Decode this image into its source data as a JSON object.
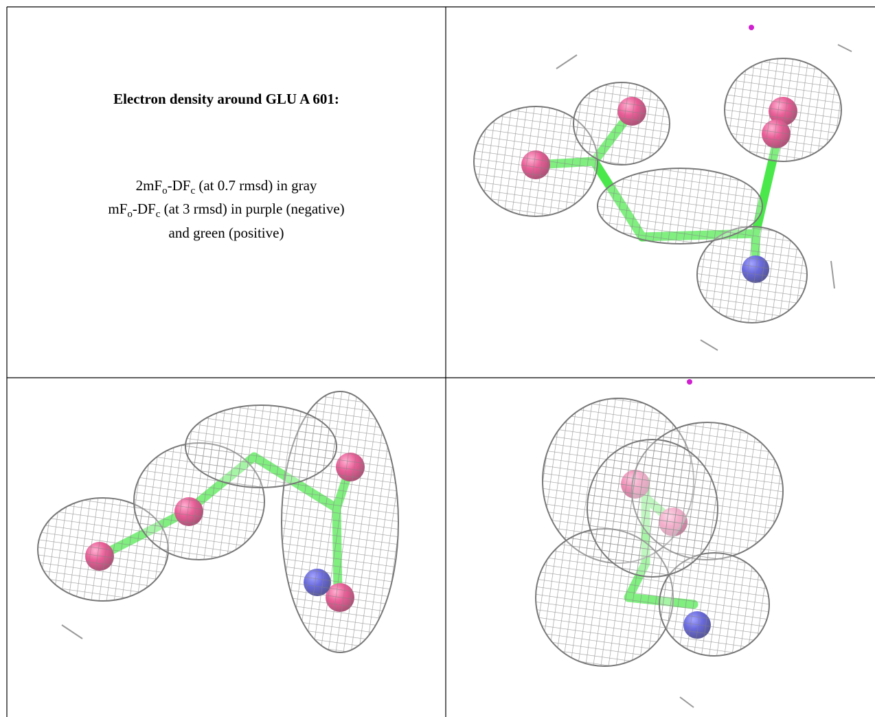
{
  "caption": {
    "title": "Electron density around GLU A 601:",
    "lines": [
      [
        "2mF",
        "o",
        "-DF",
        "c",
        " (at 0.7 rmsd) in gray"
      ],
      [
        "mF",
        "o",
        "-DF",
        "c",
        " (at 3 rmsd) in purple (negative)"
      ],
      [
        "and green (positive)"
      ]
    ]
  }
}
